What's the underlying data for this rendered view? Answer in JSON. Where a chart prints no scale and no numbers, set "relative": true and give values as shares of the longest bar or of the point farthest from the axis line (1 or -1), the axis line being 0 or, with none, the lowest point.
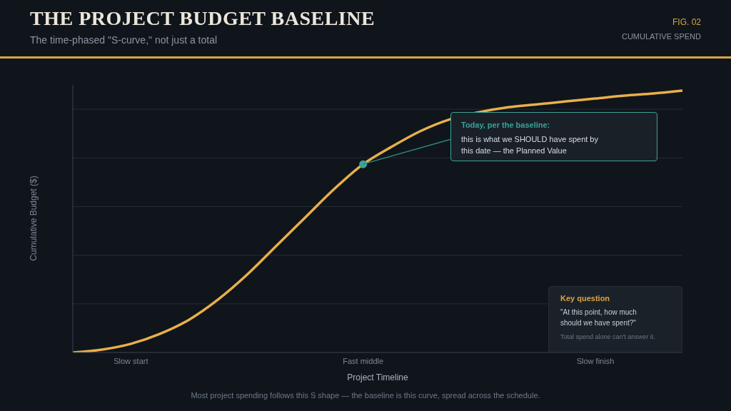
{
  "chart_data": {
    "type": "line",
    "title": "THE PROJECT BUDGET BASELINE",
    "subtitle": "The time-phased \"S-curve,\" not just a total",
    "xlabel": "Project Timeline",
    "ylabel": "Cumulative Budget ($)",
    "categories": [
      null,
      null,
      "Slow start",
      null,
      null,
      null,
      null,
      null,
      null,
      null,
      "Fast middle",
      null,
      null,
      null,
      null,
      null,
      null,
      null,
      "Slow finish",
      null,
      null,
      null
    ],
    "relative": true,
    "grid": "y",
    "line_style": "solid",
    "series": [
      {
        "color": "#e8b04a",
        "values": [
          0,
          0.011,
          0.033,
          0.071,
          0.125,
          0.202,
          0.297,
          0.406,
          0.515,
          0.624,
          0.719,
          0.787,
          0.847,
          0.891,
          0.918,
          0.937,
          0.948,
          0.959,
          0.97,
          0.981,
          0.989,
          1
        ]
      },
      {
        "type": "scatter",
        "color": "#3aa396",
        "x": [
          "Fast middle"
        ],
        "values": [
          0.719
        ]
      }
    ],
    "annotations": [
      "FIG. 02",
      "CUMULATIVE SPEND",
      "Today, per the baseline:",
      "this is what we SHOULD have spent by this date — the Planned Value",
      "Key question",
      "\"At this point, how much should we have spent?\"",
      "Total spend alone can't answer it.",
      "Most project spending follows this S shape — the baseline is this curve, spread across the schedule."
    ]
  }
}
